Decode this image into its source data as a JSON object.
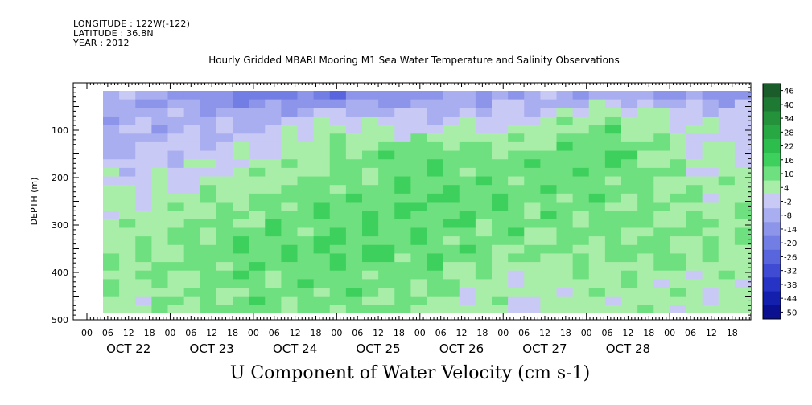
{
  "meta": {
    "longitude": "LONGITUDE : 122W(-122)",
    "latitude": "LATITUDE : 36.8N",
    "year": "YEAR : 2012"
  },
  "title": "Hourly Gridded MBARI Mooring M1 Sea Water Temperature and Salinity Observations",
  "bottom_title": "U Component of Water Velocity (cm s-1)",
  "chart_data": {
    "type": "heatmap",
    "title": "Hourly Gridded MBARI Mooring M1 Sea Water Temperature and Salinity Observations",
    "variable": "U Component of Water Velocity (cm s-1)",
    "ylabel": "DEPTH (m)",
    "ylim": [
      500,
      0
    ],
    "yticks": [
      "100",
      "200",
      "300",
      "400",
      "500"
    ],
    "x_hour_ticks": [
      "00",
      "06",
      "12",
      "18",
      "00",
      "06",
      "12",
      "18",
      "00",
      "06",
      "12",
      "18",
      "00",
      "06",
      "12",
      "18",
      "00",
      "06",
      "12",
      "18",
      "00",
      "06",
      "12",
      "18",
      "00",
      "06",
      "12",
      "18",
      "00",
      "06",
      "12",
      "18"
    ],
    "x_day_labels": [
      "OCT 22",
      "OCT 23",
      "OCT 24",
      "OCT 25",
      "OCT 26",
      "OCT 27",
      "OCT 28"
    ],
    "colorbar_levels": [
      "46",
      "40",
      "34",
      "28",
      "22",
      "16",
      "10",
      "4",
      "-2",
      "-8",
      "-14",
      "-20",
      "-26",
      "-32",
      "-38",
      "-44",
      "-50"
    ],
    "colorbar_colors": [
      "#1a5c2a",
      "#1e7a32",
      "#23923a",
      "#27a843",
      "#2dbd4c",
      "#3dd05c",
      "#6fe07f",
      "#a9eea8",
      "#c9c9f5",
      "#a9aef0",
      "#8d95ea",
      "#727ee3",
      "#5865dc",
      "#3e4bd2",
      "#2633c4",
      "#1420ad",
      "#0a1090"
    ],
    "rows_depth_m": [
      20,
      75,
      150,
      250,
      350,
      450
    ],
    "columns_day": [
      "OCT 22",
      "OCT 23",
      "OCT 24",
      "OCT 25",
      "OCT 26",
      "OCT 27",
      "OCT 28"
    ],
    "values": [
      [
        -6,
        -16,
        -18,
        -12,
        -8,
        -6,
        -10
      ],
      [
        -4,
        -6,
        4,
        -2,
        2,
        10,
        2
      ],
      [
        -2,
        2,
        10,
        14,
        12,
        16,
        4
      ],
      [
        6,
        10,
        14,
        16,
        14,
        12,
        8
      ],
      [
        10,
        14,
        16,
        14,
        10,
        12,
        10
      ],
      [
        8,
        12,
        12,
        10,
        4,
        8,
        6
      ]
    ]
  }
}
